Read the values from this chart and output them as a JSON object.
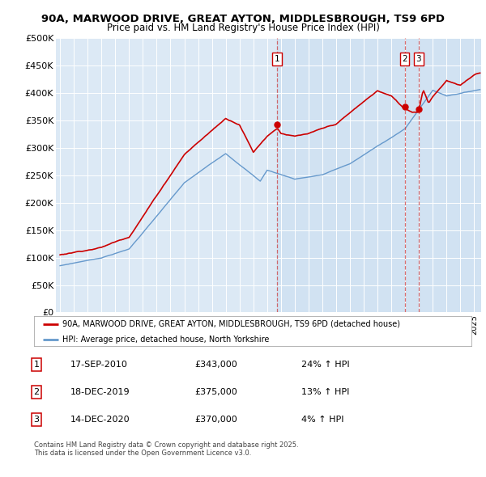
{
  "title": "90A, MARWOOD DRIVE, GREAT AYTON, MIDDLESBROUGH, TS9 6PD",
  "subtitle": "Price paid vs. HM Land Registry's House Price Index (HPI)",
  "plot_bg_color": "#dce9f5",
  "plot_highlight_color": "#c8dcf0",
  "red_line_color": "#cc0000",
  "blue_line_color": "#6699cc",
  "ylim": [
    0,
    500000
  ],
  "yticks": [
    0,
    50000,
    100000,
    150000,
    200000,
    250000,
    300000,
    350000,
    400000,
    450000,
    500000
  ],
  "ytick_labels": [
    "£0",
    "£50K",
    "£100K",
    "£150K",
    "£200K",
    "£250K",
    "£300K",
    "£350K",
    "£400K",
    "£450K",
    "£500K"
  ],
  "xlim_start": 1994.7,
  "xlim_end": 2025.5,
  "sales": [
    {
      "label": "1",
      "date": 2010.72,
      "price": 343000,
      "display_date": "17-SEP-2010",
      "display_price": "£343,000",
      "hpi_diff": "24% ↑ HPI"
    },
    {
      "label": "2",
      "date": 2019.96,
      "price": 375000,
      "display_date": "18-DEC-2019",
      "display_price": "£375,000",
      "hpi_diff": "13% ↑ HPI"
    },
    {
      "label": "3",
      "date": 2020.96,
      "price": 370000,
      "display_date": "14-DEC-2020",
      "display_price": "£370,000",
      "hpi_diff": "4% ↑ HPI"
    }
  ],
  "legend_label_red": "90A, MARWOOD DRIVE, GREAT AYTON, MIDDLESBROUGH, TS9 6PD (detached house)",
  "legend_label_blue": "HPI: Average price, detached house, North Yorkshire",
  "footer": "Contains HM Land Registry data © Crown copyright and database right 2025.\nThis data is licensed under the Open Government Licence v3.0."
}
